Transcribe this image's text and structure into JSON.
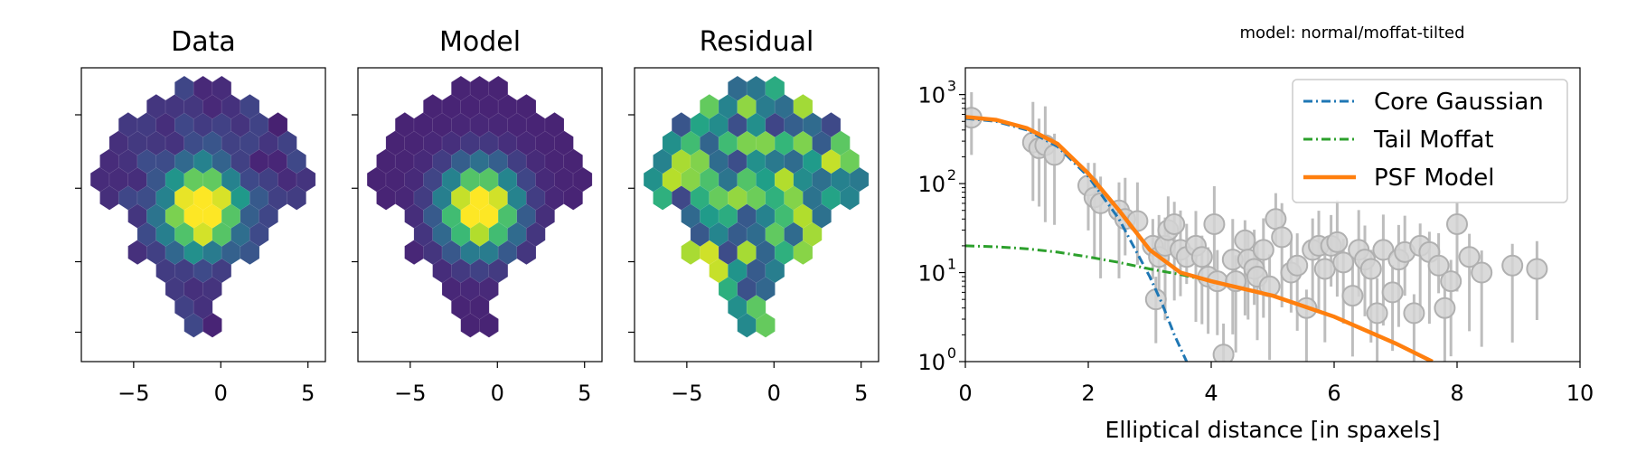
{
  "annotation": "model: normal/moffat-tilted",
  "colors": {
    "viridis_low": "#440154",
    "viridis_high": "#fde725",
    "core": "#1f77b4",
    "tail": "#2ca02c",
    "psf": "#ff7f0e",
    "points": "#bdbdbd"
  },
  "chart_data": [
    {
      "type": "heatmap",
      "title": "Data",
      "x_ticks": [
        "−5",
        "0",
        "5"
      ],
      "xlim": [
        -8,
        6
      ],
      "ylim": [
        -9,
        6
      ],
      "peak": {
        "x": -1,
        "y": -1.2,
        "sigma": 1.4
      }
    },
    {
      "type": "heatmap",
      "title": "Model",
      "x_ticks": [
        "−5",
        "0",
        "5"
      ],
      "xlim": [
        -8,
        6
      ],
      "ylim": [
        -9,
        6
      ],
      "peak": {
        "x": -1,
        "y": -1.2,
        "sigma": 1.4
      }
    },
    {
      "type": "heatmap",
      "title": "Residual",
      "x_ticks": [
        "−5",
        "0",
        "5"
      ],
      "xlim": [
        -8,
        6
      ],
      "ylim": [
        -9,
        6
      ],
      "pattern": "noise"
    },
    {
      "type": "line",
      "xlabel": "Elliptical distance [in spaxels]",
      "xlim": [
        0,
        10
      ],
      "ylim": [
        1,
        2000
      ],
      "yscale": "log",
      "x_ticks": [
        "0",
        "2",
        "4",
        "6",
        "8",
        "10"
      ],
      "y_ticks": [
        "10",
        "10",
        "10",
        "10"
      ],
      "y_tick_exponents": [
        "0",
        "1",
        "2",
        "3"
      ],
      "legend_position": "top-right",
      "series": [
        {
          "name": "Core Gaussian",
          "style": "dash-dot",
          "x": [
            0,
            0.5,
            1,
            1.5,
            2,
            2.5,
            3,
            3.2,
            3.4,
            3.6
          ],
          "y": [
            540,
            500,
            400,
            260,
            120,
            40,
            9,
            4.5,
            2,
            1
          ]
        },
        {
          "name": "Tail Moffat",
          "style": "dash-dot",
          "x": [
            0,
            0.5,
            1,
            1.5,
            2,
            2.5,
            3,
            3.5,
            4
          ],
          "y": [
            20,
            19.5,
            18.5,
            17,
            15,
            13,
            11,
            9.5,
            8
          ]
        },
        {
          "name": "PSF Model",
          "style": "solid",
          "x": [
            0,
            0.5,
            1,
            1.5,
            2,
            2.5,
            3,
            3.5,
            4,
            5,
            6,
            7,
            7.6
          ],
          "y": [
            560,
            520,
            420,
            280,
            130,
            50,
            18,
            10,
            8,
            5.5,
            3.2,
            1.6,
            1
          ]
        }
      ],
      "points": {
        "x": [
          0.1,
          1.1,
          1.2,
          1.3,
          1.45,
          2.0,
          2.1,
          2.2,
          2.5,
          2.6,
          2.8,
          3.05,
          3.1,
          3.15,
          3.25,
          3.3,
          3.4,
          3.5,
          3.6,
          3.75,
          3.85,
          3.95,
          4.05,
          4.1,
          4.2,
          4.35,
          4.4,
          4.55,
          4.6,
          4.7,
          4.75,
          4.85,
          4.95,
          5.05,
          5.15,
          5.3,
          5.4,
          5.55,
          5.65,
          5.75,
          5.85,
          5.95,
          6.05,
          6.15,
          6.3,
          6.4,
          6.5,
          6.6,
          6.7,
          6.8,
          6.95,
          7.05,
          7.15,
          7.3,
          7.4,
          7.55,
          7.7,
          7.8,
          7.9,
          8.0,
          8.2,
          8.4,
          8.9,
          9.3
        ],
        "y": [
          550,
          290,
          250,
          270,
          210,
          95,
          70,
          60,
          50,
          40,
          38,
          20,
          5,
          15,
          20,
          30,
          35,
          18,
          15,
          20,
          15,
          9,
          35,
          8,
          1.2,
          14,
          8,
          23,
          14,
          11,
          9,
          18,
          7,
          40,
          25,
          10,
          12,
          4,
          18,
          20,
          11,
          20,
          22,
          13,
          5.5,
          18,
          14,
          11,
          3.5,
          18,
          6,
          14,
          17,
          3.5,
          20,
          17,
          12,
          4,
          8,
          35,
          15,
          10,
          12,
          11
        ]
      }
    }
  ]
}
